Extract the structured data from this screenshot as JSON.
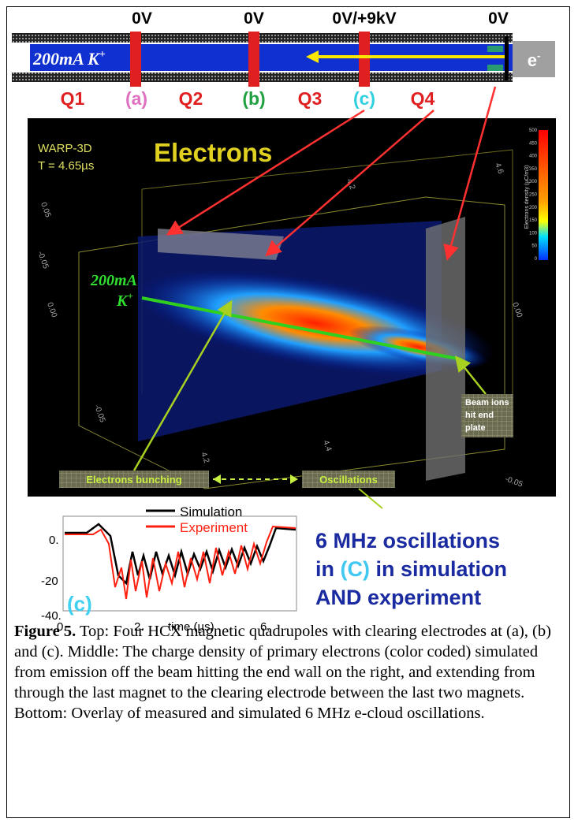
{
  "schematic": {
    "voltages": [
      "0V",
      "0V",
      "0V/+9kV",
      "0V"
    ],
    "beam_label": "200mA K",
    "beam_label_sup": "+",
    "electron_source": "e",
    "electron_source_sup": "-",
    "magnets": [
      "Q1",
      "Q2",
      "Q3",
      "Q4"
    ],
    "electrodes": [
      "(a)",
      "(b)",
      "(c)"
    ]
  },
  "simulation": {
    "code": "WARP-3D",
    "time": "T = 4.65µs",
    "title": "Electrons",
    "colorbar_label": "Electrons density (µC/m3)",
    "colorbar_ticks": [
      "500",
      "450",
      "400",
      "350",
      "300",
      "250",
      "200",
      "150",
      "100",
      "50",
      "0"
    ],
    "axis_labels": [
      "-0.05",
      "0.05",
      "0.00",
      "-0.05",
      "4.2",
      "4.6",
      "4.2",
      "4.4",
      "0.00",
      "-0.05"
    ],
    "beam_label": "200mA",
    "beam_label_2": "K",
    "beam_label_sup": "+",
    "annotation_end_plate": [
      "Beam ions",
      "hit end",
      "plate"
    ],
    "annotation_bunching": "Electrons bunching",
    "annotation_oscillations": "Oscillations"
  },
  "plot": {
    "legend": [
      "Simulation",
      "Experiment"
    ],
    "yticks": [
      "0.",
      "-20",
      "-40."
    ],
    "xticks": [
      "0.",
      "2.",
      "6."
    ],
    "xlabel": "time (µs)",
    "panel": "(c)"
  },
  "headline": {
    "line1": "6 MHz oscillations",
    "line2_a": "in ",
    "line2_b": "(C)",
    "line2_c": " in simulation",
    "line3": "AND experiment"
  },
  "caption": {
    "label": "Figure 5.",
    "text": " Top: Four HCX magnetic quadrupoles with clearing electrodes at (a), (b) and (c). Middle: The charge density of primary electrons (color coded) simulated from emission off the beam hitting the end wall on the right, and extending from through the last magnet to the clearing electrode between the last two magnets. Bottom: Overlay of measured and simulated 6 MHz e-cloud oscillations."
  }
}
